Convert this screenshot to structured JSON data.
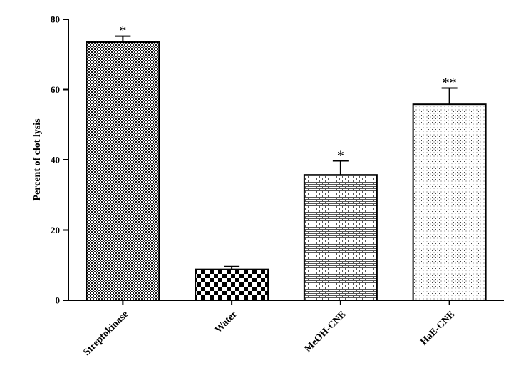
{
  "chart_data": {
    "type": "bar",
    "title": "",
    "xlabel": "",
    "ylabel": "Percent of clot lysis",
    "ylim": [
      0,
      80
    ],
    "yticks": [
      0,
      20,
      40,
      60,
      80
    ],
    "grid": false,
    "categories": [
      "Streptokinase",
      "Water",
      "MeOH-CNE",
      "HaE-CNE"
    ],
    "values": [
      73.5,
      8.8,
      35.7,
      55.8
    ],
    "errors": [
      1.7,
      0.8,
      4.0,
      4.6
    ],
    "significance": [
      "*",
      "",
      "*",
      "**"
    ],
    "patterns": [
      "crosshatch-dense",
      "checkerboard",
      "brick",
      "dots"
    ]
  }
}
